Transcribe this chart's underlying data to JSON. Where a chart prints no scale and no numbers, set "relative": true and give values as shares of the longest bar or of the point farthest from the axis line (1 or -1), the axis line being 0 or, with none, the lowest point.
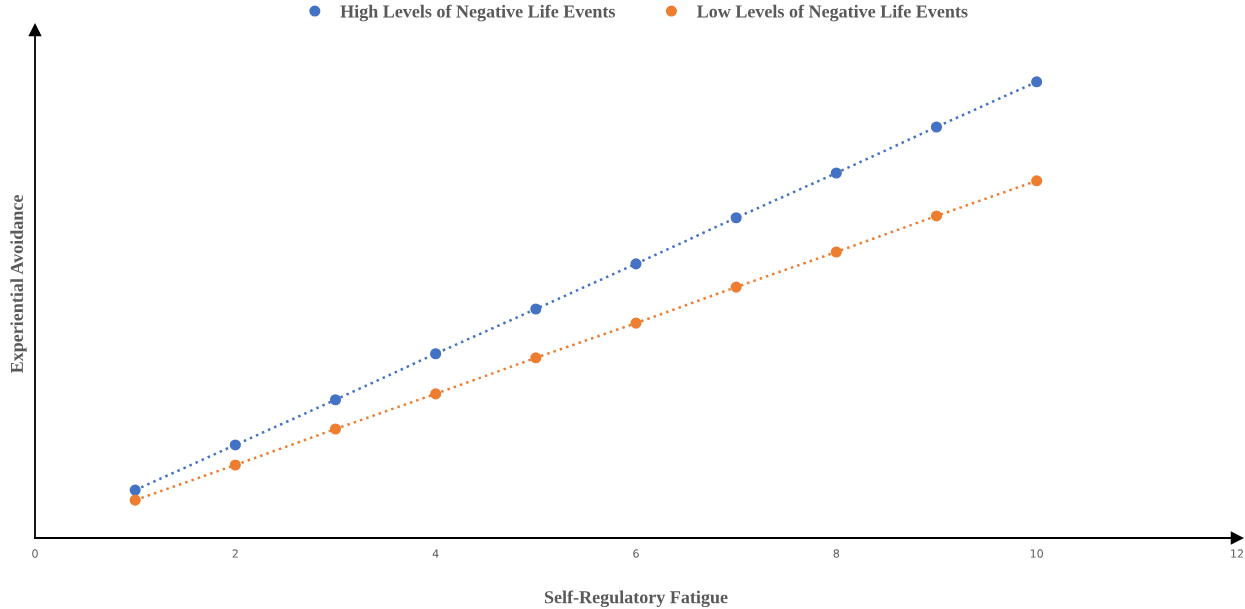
{
  "chart_data": {
    "type": "line",
    "xlabel": "Self-Regulatory Fatigue",
    "ylabel": "Experiential Avoidance",
    "x": [
      1,
      2,
      3,
      4,
      5,
      6,
      7,
      8,
      9,
      10
    ],
    "xlim": [
      0,
      12
    ],
    "xticks": [
      0,
      2,
      4,
      6,
      8,
      10,
      12
    ],
    "relative": true,
    "series": [
      {
        "name": "High Levels of Negative Life Events",
        "color": "#4472c4",
        "values": [
          0.105,
          0.204,
          0.303,
          0.404,
          0.502,
          0.601,
          0.702,
          0.8,
          0.901,
          1.0
        ]
      },
      {
        "name": "Low Levels of Negative Life Events",
        "color": "#ed7d31",
        "values": [
          0.083,
          0.16,
          0.239,
          0.316,
          0.395,
          0.471,
          0.55,
          0.627,
          0.706,
          0.783
        ]
      }
    ],
    "marker": "circle",
    "line_style": "dotted",
    "legend": "top",
    "grid": false,
    "tick_labels": "x"
  }
}
